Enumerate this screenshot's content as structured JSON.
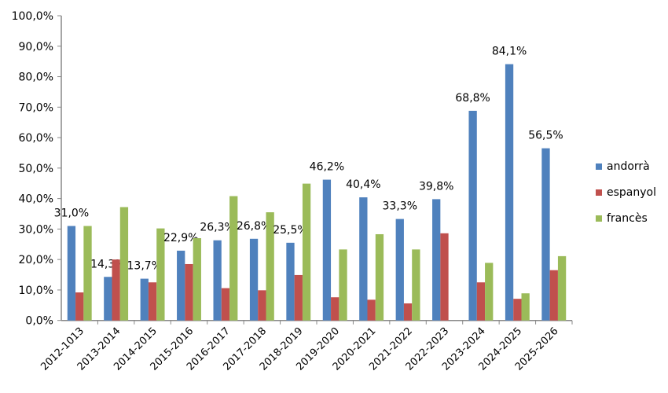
{
  "chart_data": {
    "type": "bar",
    "title": "",
    "xlabel": "",
    "ylabel": "",
    "ylim": [
      0,
      100
    ],
    "yticks": [
      "0,0%",
      "10,0%",
      "20,0%",
      "30,0%",
      "40,0%",
      "50,0%",
      "60,0%",
      "70,0%",
      "80,0%",
      "90,0%",
      "100,0%"
    ],
    "categories": [
      "2012-1013",
      "2013-2014",
      "2014-2015",
      "2015-2016",
      "2016-2017",
      "2017-2018",
      "2018-2019",
      "2019-2020",
      "2020-2021",
      "2021-2022",
      "2022-2023",
      "2023-2024",
      "2024-2025",
      "2025-2026"
    ],
    "series": [
      {
        "name": "andorrà",
        "color": "#4F81BD",
        "values": [
          31.0,
          14.3,
          13.7,
          22.9,
          26.3,
          26.8,
          25.5,
          46.2,
          40.4,
          33.3,
          39.8,
          68.8,
          84.1,
          56.5
        ],
        "labels": [
          "31,0%",
          "14,3%",
          "13,7%",
          "22,9%",
          "26,3%",
          "26,8%",
          "25,5%",
          "46,2%",
          "40,4%",
          "33,3%",
          "39,8%",
          "68,8%",
          "84,1%",
          "56,5%"
        ]
      },
      {
        "name": "espanyol",
        "color": "#C0504D",
        "values": [
          9.2,
          20.0,
          12.5,
          18.5,
          10.6,
          9.9,
          14.9,
          7.6,
          6.8,
          5.6,
          28.6,
          12.5,
          7.1,
          16.5
        ]
      },
      {
        "name": "francès",
        "color": "#9BBB59",
        "values": [
          31.0,
          37.2,
          30.2,
          27.0,
          40.8,
          35.5,
          44.9,
          23.3,
          28.3,
          23.3,
          0,
          18.9,
          8.9,
          21.1
        ]
      }
    ],
    "legend": "right",
    "grid": false
  }
}
